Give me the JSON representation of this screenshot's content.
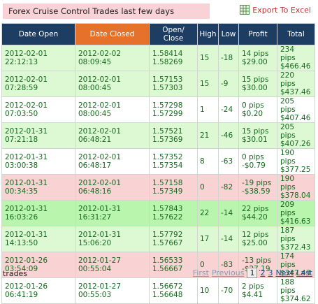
{
  "header": {
    "title": "Forex Cruise Control Trades last few days",
    "export": "Export To Excel"
  },
  "table": {
    "columns": [
      [
        "Date Open"
      ],
      [
        "Date Closed"
      ],
      [
        "Open/",
        "Close"
      ],
      [
        "High"
      ],
      [
        "Low"
      ],
      [
        "Profit"
      ],
      [
        "Total"
      ]
    ],
    "sorted_column_color": "#e5712b",
    "rows": [
      {
        "color": "#dcf9d4",
        "cells": [
          [
            "2012-02-01",
            "22:12:13"
          ],
          [
            "2012-02-02",
            "08:09:45"
          ],
          [
            "1.58414",
            "1.58269"
          ],
          [
            "15"
          ],
          [
            "-18"
          ],
          [
            "14 pips",
            "$29.00"
          ],
          [
            "234 pips",
            "$466.46"
          ]
        ]
      },
      {
        "color": "#dcf9d4",
        "cells": [
          [
            "2012-02-01",
            "07:28:59"
          ],
          [
            "2012-02-01",
            "08:00:45"
          ],
          [
            "1.57153",
            "1.57303"
          ],
          [
            "15"
          ],
          [
            "-9"
          ],
          [
            "15 pips",
            "$30.00"
          ],
          [
            "220 pips",
            "$437.46"
          ]
        ]
      },
      {
        "color": "#ffffff",
        "cells": [
          [
            "2012-02-01",
            "07:03:50"
          ],
          [
            "2012-02-01",
            "08:00:45"
          ],
          [
            "1.57298",
            "1.57299"
          ],
          [
            "1"
          ],
          [
            "-24"
          ],
          [
            "0 pips",
            "$0.20"
          ],
          [
            "205 pips",
            "$407.46"
          ]
        ]
      },
      {
        "color": "#dcf9d4",
        "cells": [
          [
            "2012-01-31",
            "07:21:18"
          ],
          [
            "2012-02-01",
            "06:48:21"
          ],
          [
            "1.57521",
            "1.57369"
          ],
          [
            "21"
          ],
          [
            "-46"
          ],
          [
            "15 pips",
            "$30.01"
          ],
          [
            "205 pips",
            "$407.26"
          ]
        ]
      },
      {
        "color": "#ffffff",
        "cells": [
          [
            "2012-01-31",
            "03:00:38"
          ],
          [
            "2012-02-01",
            "06:48:17"
          ],
          [
            "1.57352",
            "1.57354"
          ],
          [
            "8"
          ],
          [
            "-63"
          ],
          [
            "0 pips",
            "-$0.79"
          ],
          [
            "190 pips",
            "$377.25"
          ]
        ]
      },
      {
        "color": "#f9d3d3",
        "cells": [
          [
            "2012-01-31",
            "00:34:35"
          ],
          [
            "2012-02-01",
            "06:48:16"
          ],
          [
            "1.57158",
            "1.57349"
          ],
          [
            "0"
          ],
          [
            "-82"
          ],
          [
            "-19 pips",
            "-$38.59"
          ],
          [
            "190 pips",
            "$378.04"
          ]
        ]
      },
      {
        "color": "#b9f5ad",
        "cells": [
          [
            "2012-01-31",
            "16:03:26"
          ],
          [
            "2012-01-31",
            "16:31:27"
          ],
          [
            "1.57843",
            "1.57622"
          ],
          [
            "22"
          ],
          [
            "-14"
          ],
          [
            "22 pips",
            "$44.20"
          ],
          [
            "209 pips",
            "$416.63"
          ]
        ]
      },
      {
        "color": "#dcf9d4",
        "cells": [
          [
            "2012-01-31",
            "14:13:50"
          ],
          [
            "2012-01-31",
            "15:06:20"
          ],
          [
            "1.57792",
            "1.57667"
          ],
          [
            "17"
          ],
          [
            "-14"
          ],
          [
            "12 pips",
            "$25.00"
          ],
          [
            "187 pips",
            "$372.43"
          ]
        ]
      },
      {
        "color": "#f9d3d3",
        "cells": [
          [
            "2012-01-26",
            "03:54:09"
          ],
          [
            "2012-01-27",
            "00:55:04"
          ],
          [
            "1.56533",
            "1.56667"
          ],
          [
            "0"
          ],
          [
            "-83"
          ],
          [
            "-13 pips",
            "-$27.19"
          ],
          [
            "174 pips",
            "$347.43"
          ]
        ]
      },
      {
        "color": "#ffffff",
        "cells": [
          [
            "2012-01-26",
            "06:41:19"
          ],
          [
            "2012-01-27",
            "00:55:03"
          ],
          [
            "1.56672",
            "1.56648"
          ],
          [
            "10"
          ],
          [
            "-70"
          ],
          [
            "2 pips",
            "$4.41"
          ],
          [
            "188 pips",
            "$374.62"
          ]
        ]
      }
    ]
  },
  "footer": {
    "label": "trades",
    "pager": [
      "First",
      "Previous",
      "1",
      "2",
      "3",
      "Next",
      "Last"
    ],
    "current_page": "1"
  }
}
